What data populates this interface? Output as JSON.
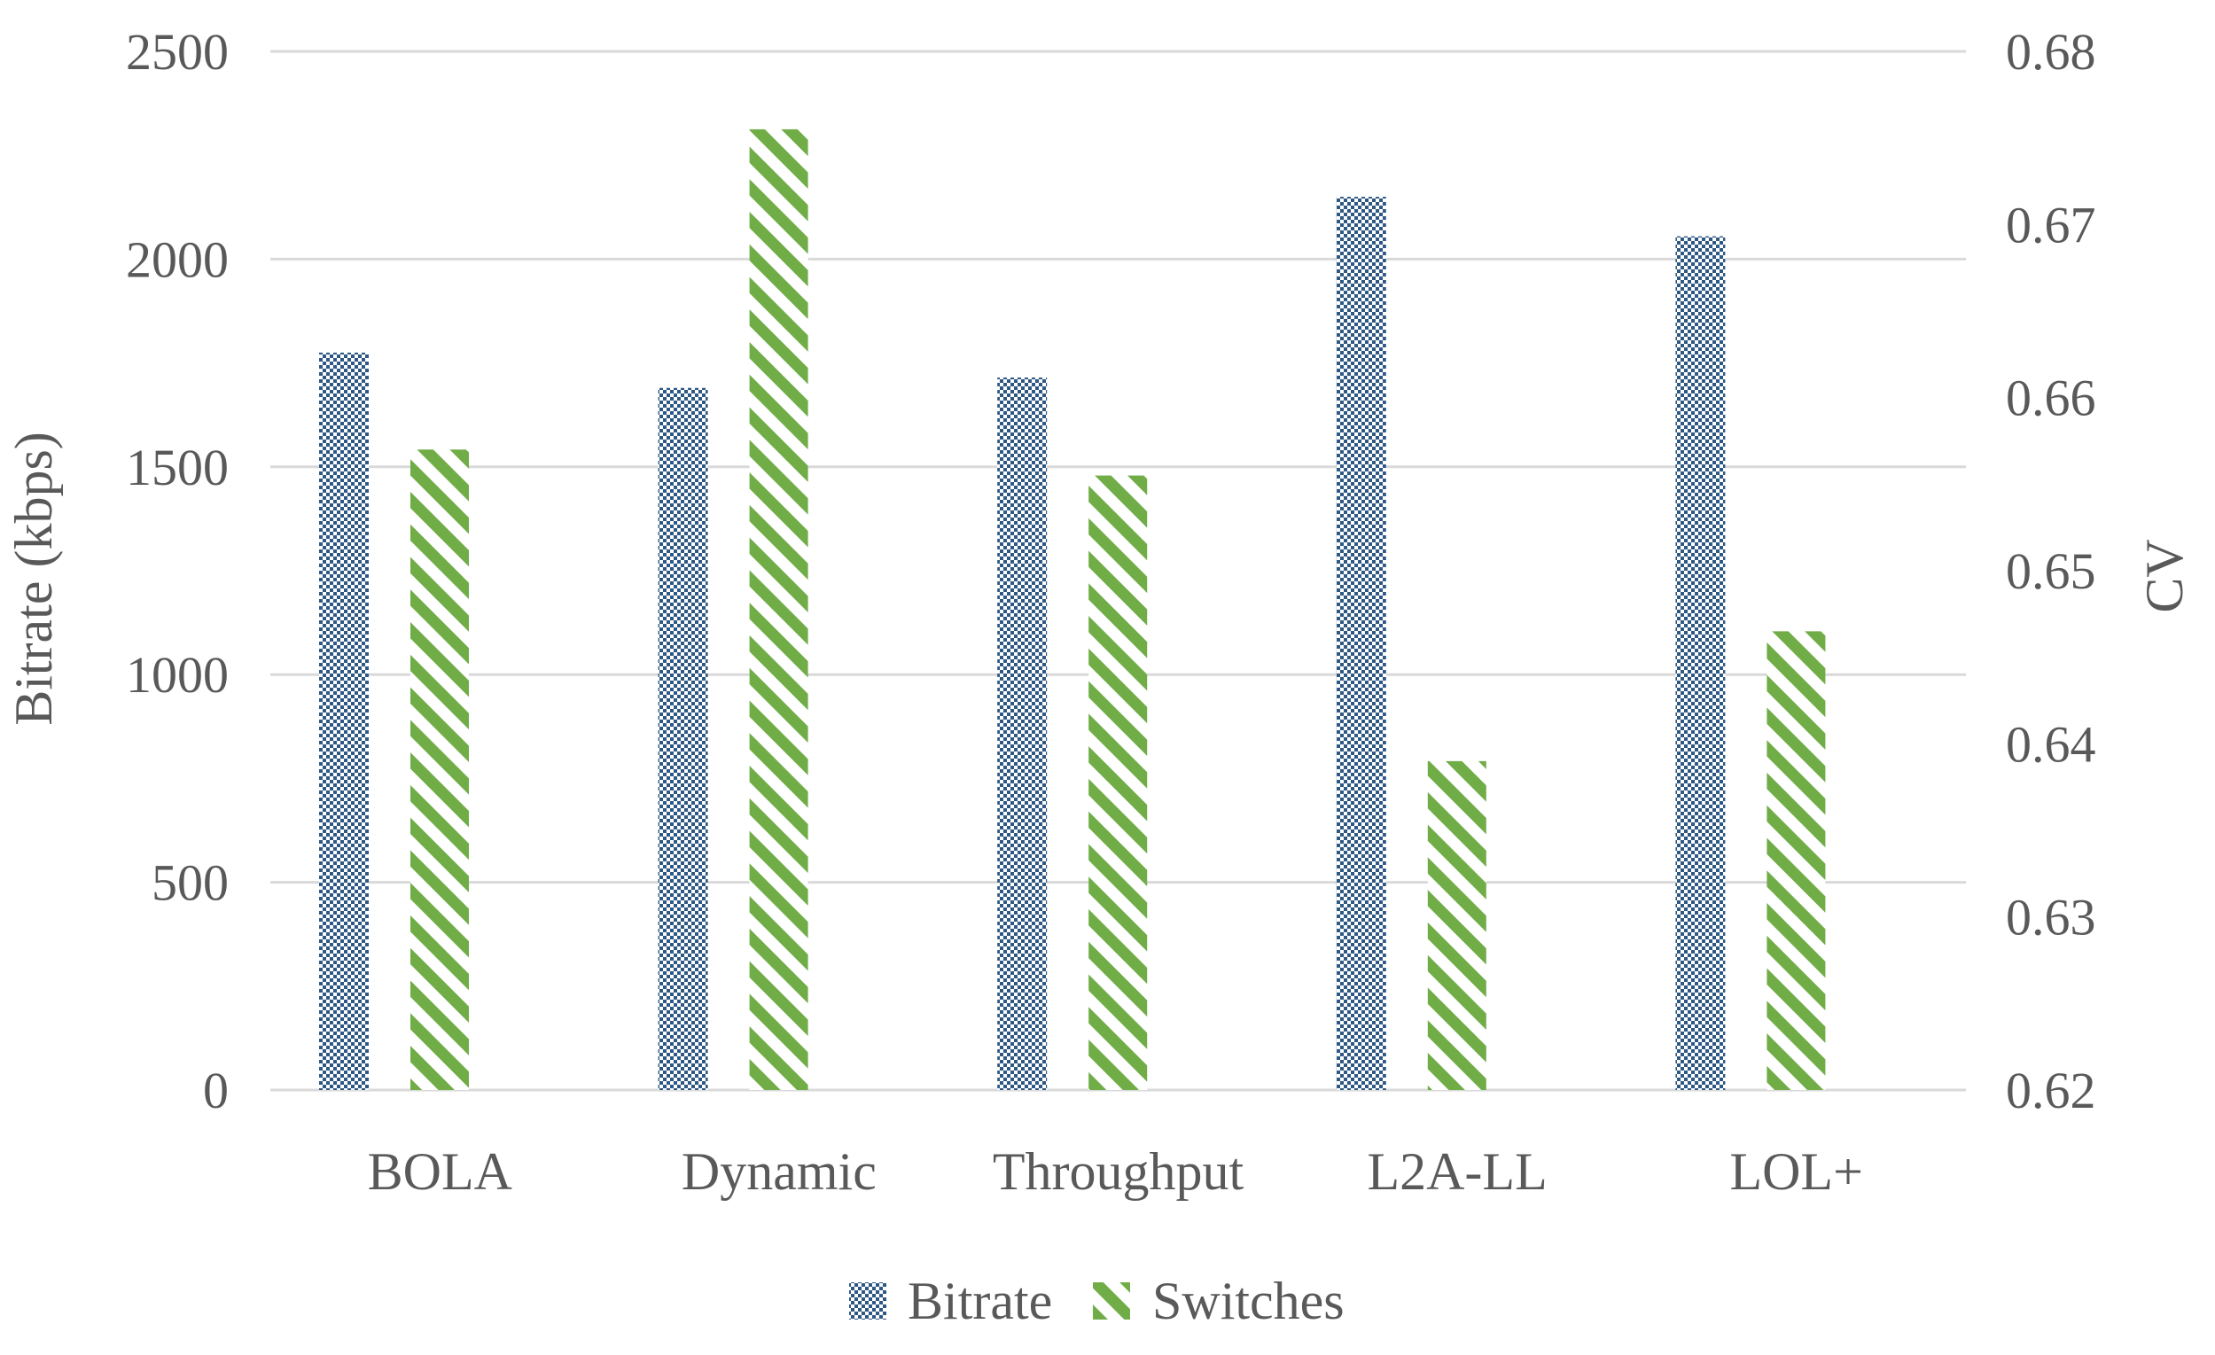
{
  "chart_data": {
    "type": "bar",
    "categories": [
      "BOLA",
      "Dynamic",
      "Throughput",
      "L2A-LL",
      "LOL+"
    ],
    "series": [
      {
        "name": "Bitrate",
        "axis": "left",
        "color": "#2e5884",
        "pattern": "checker",
        "values": [
          1775,
          1690,
          1715,
          2150,
          2055
        ]
      },
      {
        "name": "Switches",
        "axis": "right",
        "color": "#70ad47",
        "pattern": "diagonal-stripes",
        "values": [
          0.657,
          0.6755,
          0.6555,
          0.639,
          0.6465
        ]
      }
    ],
    "ylabel": "Bitrate (kbps)",
    "y2label": "CV",
    "ylim": [
      0,
      2500
    ],
    "y2lim": [
      0.62,
      0.68
    ],
    "yticks": [
      "0",
      "500",
      "1000",
      "1500",
      "2000",
      "2500"
    ],
    "y2ticks": [
      "0.62",
      "0.63",
      "0.64",
      "0.65",
      "0.66",
      "0.67",
      "0.68"
    ],
    "grid": true,
    "legend": "bottom-center",
    "legend_labels": [
      "Bitrate",
      "Switches"
    ]
  }
}
